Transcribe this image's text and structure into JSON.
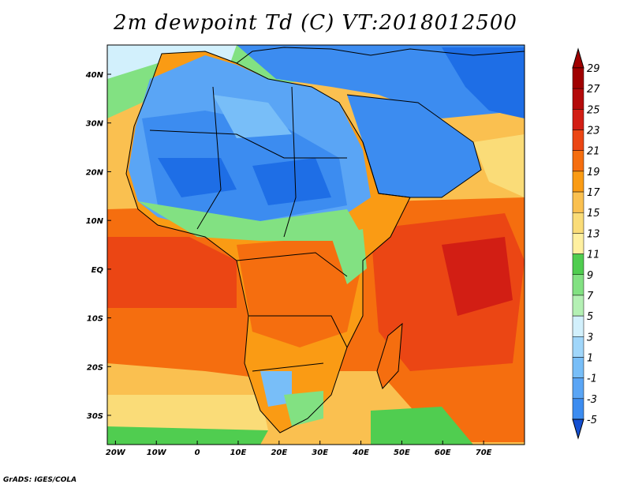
{
  "title": "2m dewpoint Td (C) VT:2018012500",
  "credit": "GrADS: IGES/COLA",
  "map": {
    "lon_range": [
      -22,
      80
    ],
    "lat_range": [
      -36,
      46
    ],
    "lon_ticks": [
      {
        "value": -20,
        "label": "20W"
      },
      {
        "value": -10,
        "label": "10W"
      },
      {
        "value": 0,
        "label": "0"
      },
      {
        "value": 10,
        "label": "10E"
      },
      {
        "value": 20,
        "label": "20E"
      },
      {
        "value": 30,
        "label": "30E"
      },
      {
        "value": 40,
        "label": "40E"
      },
      {
        "value": 50,
        "label": "50E"
      },
      {
        "value": 60,
        "label": "60E"
      },
      {
        "value": 70,
        "label": "70E"
      }
    ],
    "lat_ticks": [
      {
        "value": 40,
        "label": "40N"
      },
      {
        "value": 30,
        "label": "30N"
      },
      {
        "value": 20,
        "label": "20N"
      },
      {
        "value": 10,
        "label": "10N"
      },
      {
        "value": 0,
        "label": "EQ"
      },
      {
        "value": -10,
        "label": "10S"
      },
      {
        "value": -20,
        "label": "20S"
      },
      {
        "value": -30,
        "label": "30S"
      }
    ]
  },
  "colorbar": {
    "levels": [
      -5,
      -3,
      -1,
      1,
      3,
      5,
      7,
      9,
      11,
      13,
      15,
      17,
      19,
      21,
      23,
      25,
      27,
      29
    ],
    "labels": [
      "-5",
      "-3",
      "-1",
      "1",
      "3",
      "5",
      "7",
      "9",
      "11",
      "13",
      "15",
      "17",
      "19",
      "21",
      "23",
      "25",
      "27",
      "29"
    ],
    "colors": [
      "#1e6ee6",
      "#3c8cf0",
      "#5aa5f5",
      "#78bef8",
      "#a0d6fa",
      "#d2f0fc",
      "#b4f0b4",
      "#82e182",
      "#50cd50",
      "#fff0a0",
      "#fadc78",
      "#fac050",
      "#fa9b14",
      "#f56e0f",
      "#eb4614",
      "#d21e14",
      "#b40a0a",
      "#a00000"
    ],
    "under_color": "#1450d2",
    "over_color": "#a00000"
  }
}
